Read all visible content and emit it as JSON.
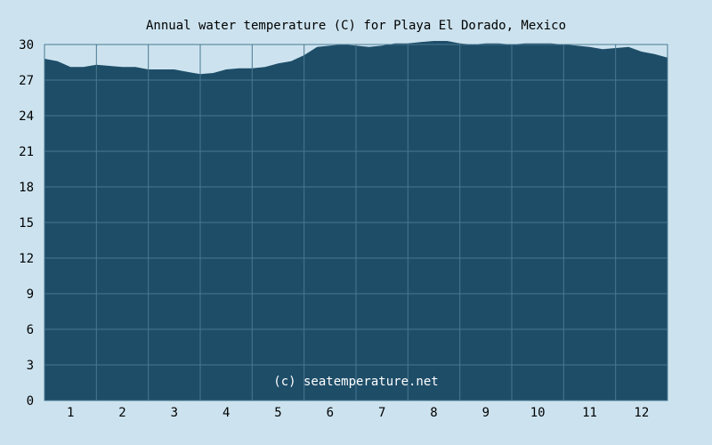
{
  "chart_data": {
    "type": "area",
    "title": "Annual water temperature (C) for Playa El Dorado, Mexico",
    "xlabel": "",
    "ylabel": "",
    "watermark": "(c) seatemperature.net",
    "ylim": [
      0,
      30
    ],
    "xlim": [
      0.5,
      12.5
    ],
    "y_ticks": [
      0,
      3,
      6,
      9,
      12,
      15,
      18,
      21,
      24,
      27,
      30
    ],
    "x_ticks": [
      1,
      2,
      3,
      4,
      5,
      6,
      7,
      8,
      9,
      10,
      11,
      12
    ],
    "grid": true,
    "legend": "none",
    "colors": {
      "background": "#cce3ef",
      "fill": "#1e4d68",
      "grid": "#4a7891"
    },
    "series": [
      {
        "x": [
          0.5,
          0.75,
          1.0,
          1.25,
          1.5,
          1.75,
          2.0,
          2.25,
          2.5,
          2.75,
          3.0,
          3.25,
          3.5,
          3.75,
          4.0,
          4.25,
          4.5,
          4.75,
          5.0,
          5.25,
          5.5,
          5.75,
          6.0,
          6.25,
          6.5,
          6.75,
          7.0,
          7.25,
          7.5,
          7.75,
          8.0,
          8.25,
          8.5,
          8.75,
          9.0,
          9.25,
          9.5,
          9.75,
          10.0,
          10.25,
          10.5,
          10.75,
          11.0,
          11.25,
          11.5,
          11.75,
          12.0,
          12.25,
          12.5
        ],
        "y": [
          28.8,
          28.6,
          28.1,
          28.1,
          28.3,
          28.2,
          28.1,
          28.1,
          27.9,
          27.9,
          27.9,
          27.7,
          27.5,
          27.6,
          27.9,
          28.0,
          28.0,
          28.1,
          28.4,
          28.6,
          29.1,
          29.8,
          29.9,
          30.0,
          29.9,
          29.8,
          29.9,
          30.1,
          30.1,
          30.2,
          30.3,
          30.3,
          30.1,
          30.0,
          30.1,
          30.1,
          30.0,
          30.1,
          30.1,
          30.1,
          30.0,
          29.9,
          29.8,
          29.6,
          29.7,
          29.8,
          29.4,
          29.2,
          28.9
        ]
      }
    ]
  }
}
